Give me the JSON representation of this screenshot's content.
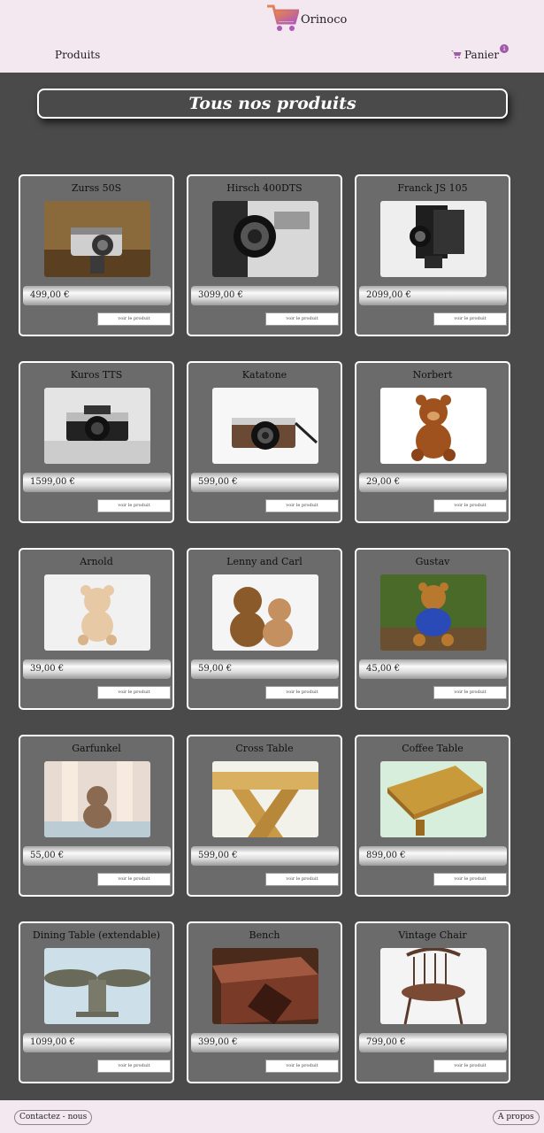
{
  "header": {
    "logo_text": "Orinoco",
    "nav_produits": "Produits",
    "nav_panier": "Panier",
    "cart_count": "1"
  },
  "page_title": "Tous nos produits",
  "products": [
    {
      "name": "Zurss 50S",
      "price": "499,00 €",
      "cta": "voir le produit",
      "image": "vintage-camera"
    },
    {
      "name": "Hirsch 400DTS",
      "price": "3099,00 €",
      "cta": "voir le produit",
      "image": "camera-bw"
    },
    {
      "name": "Franck JS 105",
      "price": "2099,00 €",
      "cta": "voir le produit",
      "image": "folding-camera"
    },
    {
      "name": "Kuros TTS",
      "price": "1599,00 €",
      "cta": "voir le produit",
      "image": "slr-camera"
    },
    {
      "name": "Katatone",
      "price": "599,00 €",
      "cta": "voir le produit",
      "image": "retro-camera"
    },
    {
      "name": "Norbert",
      "price": "29,00 €",
      "cta": "voir le produit",
      "image": "teddy-bear"
    },
    {
      "name": "Arnold",
      "price": "39,00 €",
      "cta": "voir le produit",
      "image": "teddy-bear-light"
    },
    {
      "name": "Lenny and Carl",
      "price": "59,00 €",
      "cta": "voir le produit",
      "image": "teddy-bears-pair"
    },
    {
      "name": "Gustav",
      "price": "45,00 €",
      "cta": "voir le produit",
      "image": "teddy-bear-shirt"
    },
    {
      "name": "Garfunkel",
      "price": "55,00 €",
      "cta": "voir le produit",
      "image": "teddy-bear-window"
    },
    {
      "name": "Cross Table",
      "price": "599,00 €",
      "cta": "voir le produit",
      "image": "cross-table"
    },
    {
      "name": "Coffee Table",
      "price": "899,00 €",
      "cta": "voir le produit",
      "image": "coffee-table"
    },
    {
      "name": "Dining Table (extendable)",
      "price": "1099,00 €",
      "cta": "voir le produit",
      "image": "dining-table"
    },
    {
      "name": "Bench",
      "price": "399,00 €",
      "cta": "voir le produit",
      "image": "wood-bench"
    },
    {
      "name": "Vintage Chair",
      "price": "799,00 €",
      "cta": "voir le produit",
      "image": "windsor-chair"
    }
  ],
  "footer": {
    "contact": "Contactez - nous",
    "about": "A propos"
  },
  "colors": {
    "header_bg": "#f3e7f0",
    "page_bg": "#4a4a4a",
    "card_bg": "#6b6b6b",
    "accent": "#a05aa8"
  }
}
